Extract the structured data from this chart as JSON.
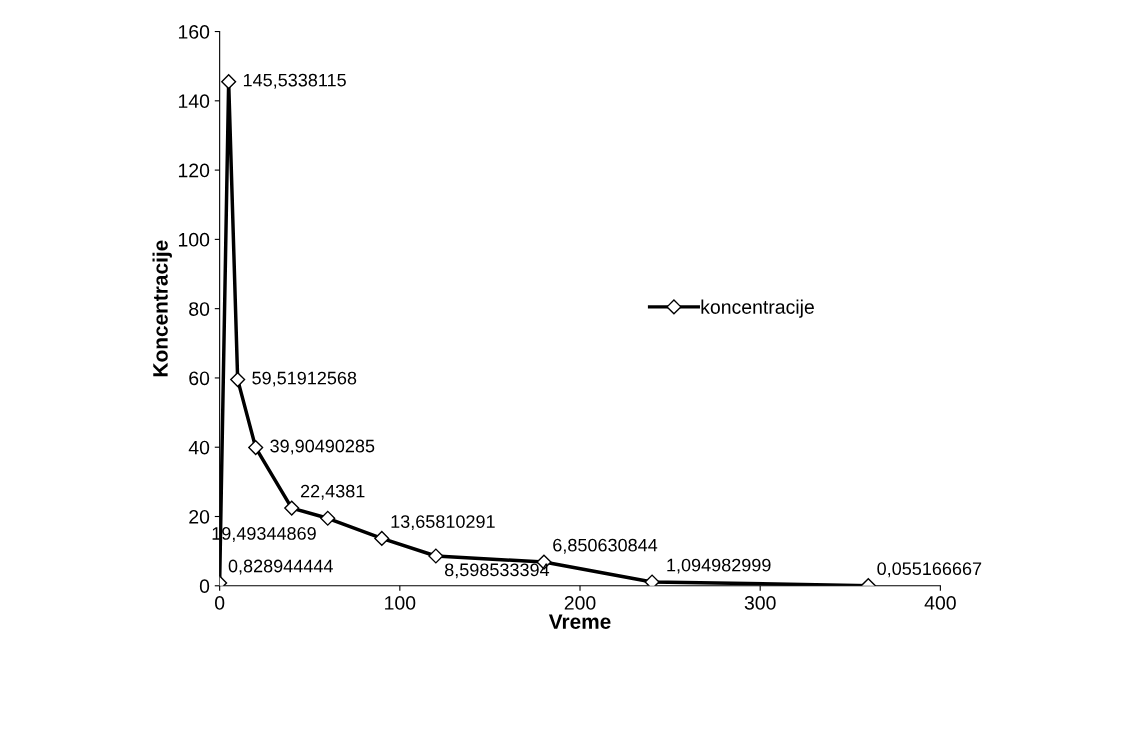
{
  "chart_data": {
    "type": "line",
    "xlabel": "Vreme",
    "ylabel": "Koncentracije",
    "x": [
      0,
      5,
      10,
      20,
      40,
      60,
      90,
      120,
      180,
      240,
      360
    ],
    "series": [
      {
        "name": "koncentracije",
        "color": "#000000",
        "values": [
          0.828944444,
          145.5338115,
          59.51912568,
          39.90490285,
          22.4381,
          19.49344869,
          13.65810291,
          8.598533394,
          6.850630844,
          1.094982999,
          0.055166667
        ],
        "value_labels": [
          "0,828944444",
          "145,5338115",
          "59,51912568",
          "39,90490285",
          "22,4381",
          "19,49344869",
          "13,65810291",
          "8,598533394",
          "6,850630844",
          "1,094982999",
          "0,055166667"
        ]
      }
    ],
    "xlim": [
      0,
      400
    ],
    "xticks": [
      0,
      100,
      200,
      300,
      400
    ],
    "ylim": [
      0,
      160
    ],
    "yticks": [
      0,
      20,
      40,
      60,
      80,
      100,
      120,
      140,
      160
    ],
    "marker": "diamond",
    "line_style": "solid",
    "grid": false,
    "legend": "right"
  }
}
